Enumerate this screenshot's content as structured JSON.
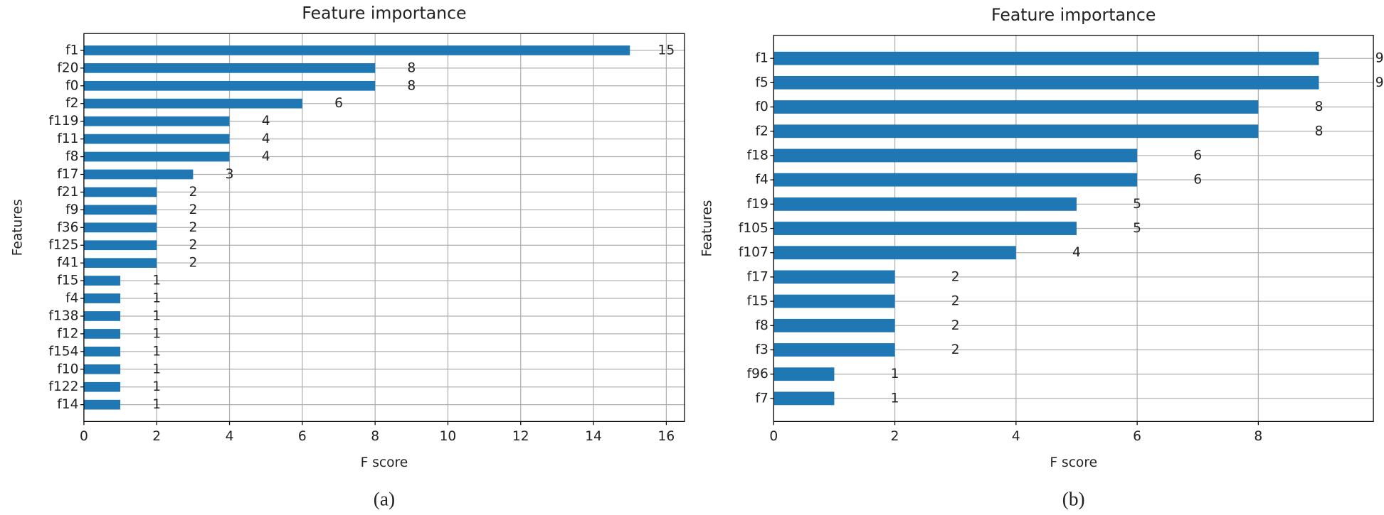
{
  "chart_data": [
    {
      "type": "barh",
      "title": "Feature importance",
      "xlabel": "F score",
      "ylabel": "Features",
      "caption": "(a)",
      "categories": [
        "f1",
        "f20",
        "f0",
        "f2",
        "f119",
        "f11",
        "f8",
        "f17",
        "f21",
        "f9",
        "f36",
        "f125",
        "f41",
        "f15",
        "f4",
        "f138",
        "f12",
        "f154",
        "f10",
        "f122",
        "f14"
      ],
      "values": [
        15,
        8,
        8,
        6,
        4,
        4,
        4,
        3,
        2,
        2,
        2,
        2,
        2,
        1,
        1,
        1,
        1,
        1,
        1,
        1,
        1
      ],
      "color": "#1f77b4",
      "xlim": [
        0,
        16.5
      ],
      "xticks": [
        0,
        2,
        4,
        6,
        8,
        10,
        12,
        14,
        16
      ],
      "grid": true
    },
    {
      "type": "barh",
      "title": "Feature importance",
      "xlabel": "F score",
      "ylabel": "Features",
      "caption": "(b)",
      "categories": [
        "f1",
        "f5",
        "f0",
        "f2",
        "f18",
        "f4",
        "f19",
        "f105",
        "f107",
        "f17",
        "f15",
        "f8",
        "f3",
        "f96",
        "f7"
      ],
      "values": [
        9,
        9,
        8,
        8,
        6,
        6,
        5,
        5,
        4,
        2,
        2,
        2,
        2,
        1,
        1
      ],
      "color": "#1f77b4",
      "xlim": [
        0,
        9.9
      ],
      "xticks": [
        0,
        2,
        4,
        6,
        8
      ],
      "grid": true
    }
  ]
}
